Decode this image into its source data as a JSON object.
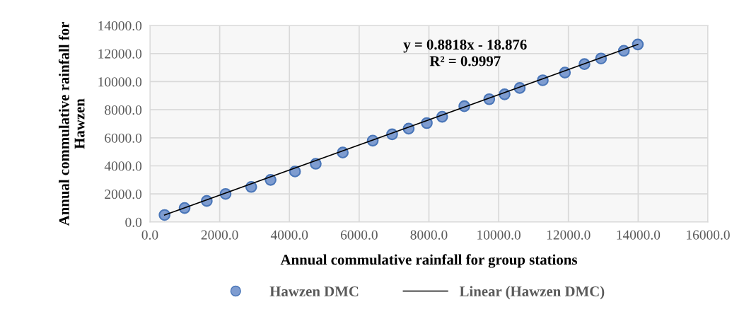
{
  "chart_data": {
    "type": "scatter",
    "xlabel": "Annual commulative rainfall for group stations",
    "ylabel": "Annual commulative rainfall for Hawzen",
    "annotations": [
      "y = 0.8818x - 18.876\nR² = 0.9997"
    ],
    "series": [
      {
        "name": "Hawzen DMC",
        "color": "#7e9cd0",
        "marker": "circle",
        "x": [
          420,
          995,
          1630,
          2170,
          2905,
          3460,
          4160,
          4755,
          5530,
          6390,
          6945,
          7420,
          7940,
          8380,
          9015,
          9730,
          10170,
          10605,
          11265,
          11900,
          12460,
          12935,
          13590,
          13990
        ],
        "values": [
          500,
          1000,
          1500,
          2000,
          2500,
          3000,
          3600,
          4150,
          4950,
          5800,
          6250,
          6650,
          7050,
          7500,
          8250,
          8750,
          9100,
          9550,
          10100,
          10650,
          11250,
          11650,
          12200,
          12650
        ]
      },
      {
        "name": "Linear (Hawzen DMC)",
        "type": "line",
        "color": "#000000",
        "marker": "none",
        "line_style": "solid",
        "x": [
          420,
          13990
        ],
        "values": [
          500,
          12650
        ]
      }
    ],
    "xlim": [
      0,
      16000
    ],
    "xticks": [
      {
        "value": 0,
        "label": "0.0"
      },
      {
        "value": 2000,
        "label": "2000.0"
      },
      {
        "value": 4000,
        "label": "4000.0"
      },
      {
        "value": 6000,
        "label": "6000.0"
      },
      {
        "value": 8000,
        "label": "8000.0"
      },
      {
        "value": 10000,
        "label": "10000.0"
      },
      {
        "value": 12000,
        "label": "12000.0"
      },
      {
        "value": 14000,
        "label": "14000.0"
      },
      {
        "value": 16000,
        "label": "16000.0"
      }
    ],
    "ylim": [
      0,
      14000
    ],
    "yticks": [
      {
        "value": 0,
        "label": "0.0"
      },
      {
        "value": 2000,
        "label": "2000.0"
      },
      {
        "value": 4000,
        "label": "4000.0"
      },
      {
        "value": 6000,
        "label": "6000.0"
      },
      {
        "value": 8000,
        "label": "8000.0"
      },
      {
        "value": 10000,
        "label": "10000.0"
      },
      {
        "value": 12000,
        "label": "12000.0"
      },
      {
        "value": 14000,
        "label": "14000.0"
      }
    ],
    "grid": true,
    "legend": "bottom"
  }
}
